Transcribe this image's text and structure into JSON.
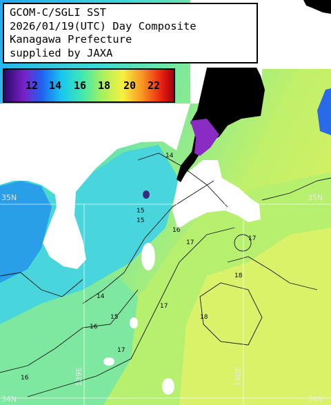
{
  "title": {
    "line1": "GCOM-C/SGLI SST",
    "line2": "2026/01/19(UTC) Day Composite",
    "line3": "Kanagawa Prefecture",
    "line4": "supplied by JAXA"
  },
  "legend": {
    "ticks": [
      "12",
      "14",
      "16",
      "18",
      "20",
      "22"
    ],
    "colors": [
      "#2a0a6a",
      "#7a22c8",
      "#2060f0",
      "#18c8f0",
      "#40e8b0",
      "#a8f060",
      "#f8f040",
      "#f89020",
      "#e82010",
      "#a00010"
    ]
  },
  "grid": {
    "lat35_west": "35N",
    "lat35_east": "35N",
    "lat34_west": "34N",
    "lat34_east": "34N",
    "lon139": "139E",
    "lon140": "140E"
  },
  "contour_labels": [
    "14",
    "15",
    "16",
    "17",
    "14",
    "15",
    "16",
    "17",
    "18",
    "18",
    "17",
    "16",
    "15",
    "17"
  ],
  "colors": {
    "land": "#ffffff",
    "cloud_mask": "#000000",
    "cool_water": "#2a9ee8",
    "mid_water": "#7fe8a0",
    "warm_water": "#d9f26a"
  }
}
